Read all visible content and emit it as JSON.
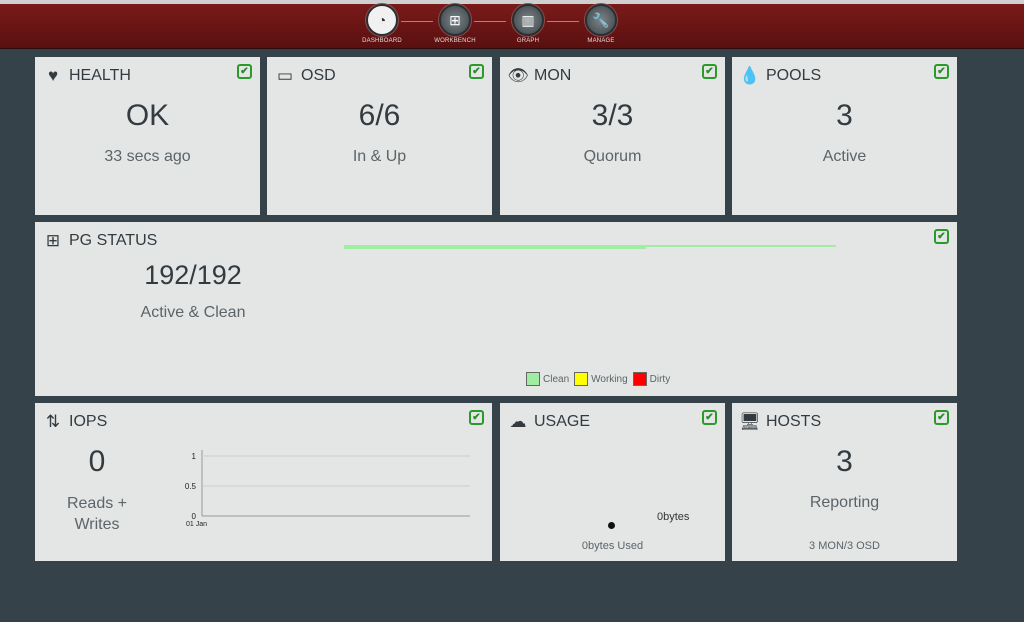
{
  "nav": [
    {
      "label": "DASHBOARD",
      "icon": "gauge-icon"
    },
    {
      "label": "WORKBENCH",
      "icon": "sitemap-icon"
    },
    {
      "label": "GRAPH",
      "icon": "bar-chart-icon"
    },
    {
      "label": "MANAGE",
      "icon": "wrench-icon"
    }
  ],
  "health": {
    "title": "HEALTH",
    "value": "OK",
    "sub": "33 secs ago"
  },
  "osd": {
    "title": "OSD",
    "value": "6/6",
    "sub": "In & Up"
  },
  "mon": {
    "title": "MON",
    "value": "3/3",
    "sub": "Quorum"
  },
  "pools": {
    "title": "POOLS",
    "value": "3",
    "sub": "Active"
  },
  "pg": {
    "title": "PG STATUS",
    "value": "192/192",
    "sub": "Active & Clean",
    "clean_fraction": 1.0,
    "legend": [
      {
        "label": "Clean",
        "color": "#a0eca0"
      },
      {
        "label": "Working",
        "color": "#ffff00"
      },
      {
        "label": "Dirty",
        "color": "#ff0000"
      }
    ]
  },
  "iops": {
    "title": "IOPS",
    "value": "0",
    "sub": "Reads + Writes",
    "chart_data": {
      "type": "line",
      "x": [
        "01 Jan"
      ],
      "series": [
        {
          "values": [
            0
          ]
        }
      ],
      "ylim": [
        0,
        1
      ],
      "yticks": [
        "1",
        "0.5",
        "0"
      ],
      "xticks": [
        "01 Jan"
      ],
      "grid": true
    }
  },
  "usage": {
    "title": "USAGE",
    "total": "0bytes",
    "used": "0bytes Used"
  },
  "hosts": {
    "title": "HOSTS",
    "value": "3",
    "sub": "Reporting",
    "detail": "3 MON/3 OSD"
  },
  "colors": {
    "accent": "#6b1414",
    "ok": "#2a9a2a",
    "card": "#e4e6e5",
    "background": "#36424a"
  }
}
